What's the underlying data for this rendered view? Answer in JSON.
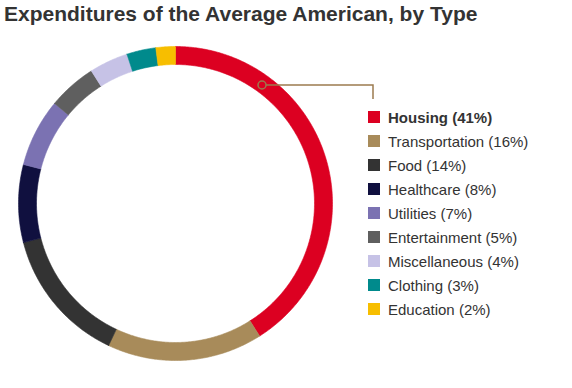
{
  "chart_data": {
    "type": "donut",
    "title": "Expenditures of the Average American, by Type",
    "categories": [
      "Housing (41%)",
      "Transportation (16%)",
      "Food (14%)",
      "Healthcare (8%)",
      "Utilities (7%)",
      "Entertainment (5%)",
      "Miscellaneous (4%)",
      "Clothing (3%)",
      "Education (2%)"
    ],
    "values": [
      41,
      16,
      14,
      8,
      7,
      5,
      4,
      3,
      2
    ],
    "colors": [
      "#dc0021",
      "#a88b5a",
      "#333333",
      "#10103f",
      "#7b72b2",
      "#5f5f5f",
      "#c6c2e6",
      "#008a8c",
      "#f7be00"
    ],
    "legend": "right"
  }
}
